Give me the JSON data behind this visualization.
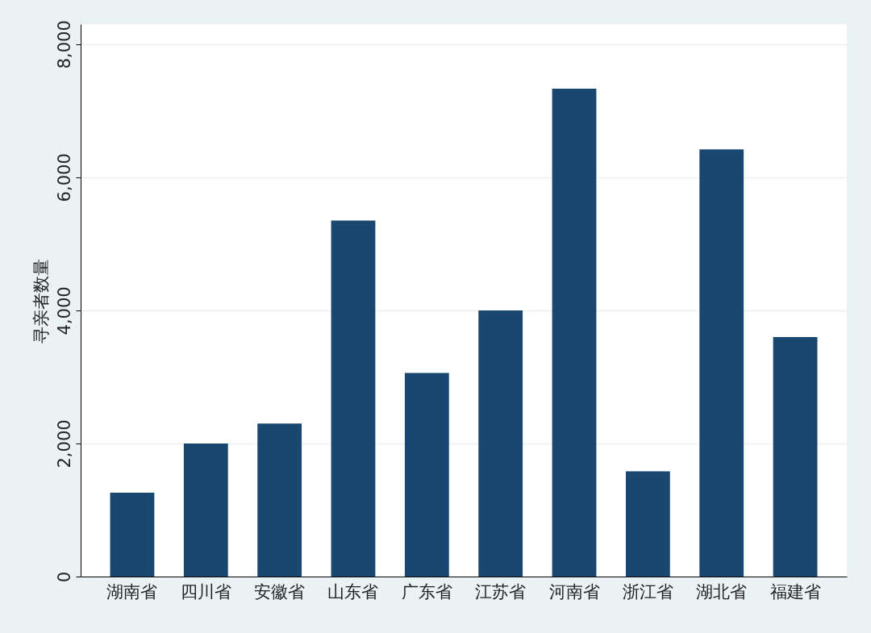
{
  "chart_data": {
    "type": "bar",
    "ylabel": "寻亲者数量",
    "categories": [
      "湖南省",
      "四川省",
      "安徽省",
      "山东省",
      "广东省",
      "江苏省",
      "河南省",
      "浙江省",
      "湖北省",
      "福建省"
    ],
    "values": [
      1260,
      2000,
      2300,
      5350,
      3060,
      4000,
      7330,
      1580,
      6420,
      3600
    ],
    "color": "#1a476f",
    "ylim": [
      0,
      8300
    ],
    "yticks": [
      {
        "value": 0,
        "label": "0"
      },
      {
        "value": 2000,
        "label": "2,000"
      },
      {
        "value": 4000,
        "label": "4,000"
      },
      {
        "value": 6000,
        "label": "6,000"
      },
      {
        "value": 8000,
        "label": "8,000"
      }
    ],
    "grid": "y"
  }
}
